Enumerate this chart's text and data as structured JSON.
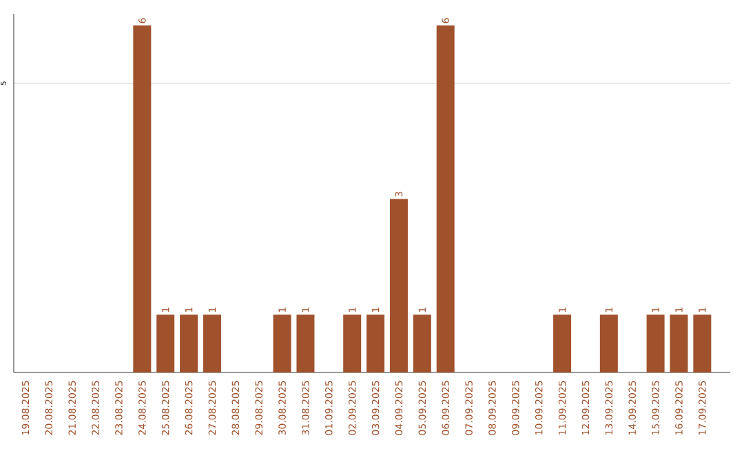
{
  "chart_data": {
    "type": "bar",
    "color": "#a0522d",
    "categories": [
      "19.08.2025",
      "20.08.2025",
      "21.08.2025",
      "22.08.2025",
      "23.08.2025",
      "24.08.2025",
      "25.08.2025",
      "26.08.2025",
      "27.08.2025",
      "28.08.2025",
      "29.08.2025",
      "30.08.2025",
      "31.08.2025",
      "01.09.2025",
      "02.09.2025",
      "03.09.2025",
      "04.09.2025",
      "05.09.2025",
      "06.09.2025",
      "07.09.2025",
      "08.09.2025",
      "09.09.2025",
      "10.09.2025",
      "11.09.2025",
      "12.09.2025",
      "13.09.2025",
      "14.09.2025",
      "15.09.2025",
      "16.09.2025",
      "17.09.2025"
    ],
    "values": [
      0,
      0,
      0,
      0,
      0,
      6,
      1,
      1,
      1,
      0,
      0,
      1,
      1,
      0,
      1,
      1,
      3,
      1,
      6,
      0,
      0,
      0,
      0,
      1,
      0,
      1,
      0,
      1,
      1,
      1
    ],
    "value_labels": [
      null,
      null,
      null,
      null,
      null,
      "6",
      "1",
      "1",
      "1",
      null,
      null,
      "1",
      "1",
      null,
      "1",
      "1",
      "3",
      "1",
      "6",
      null,
      null,
      null,
      null,
      "1",
      null,
      "1",
      null,
      "1",
      "1",
      "1"
    ],
    "ylim": [
      0,
      6.2
    ],
    "yticks": [
      5
    ],
    "grid": "y"
  }
}
